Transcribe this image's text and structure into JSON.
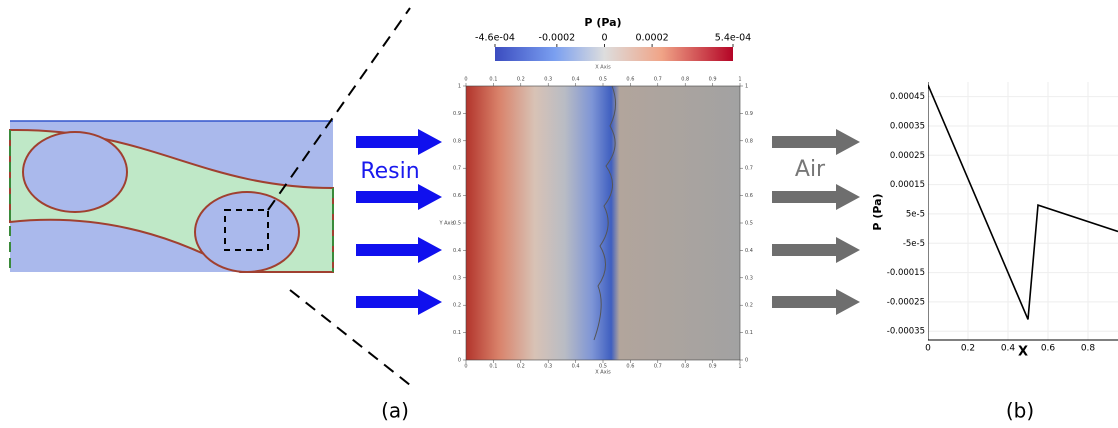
{
  "figure": {
    "label_a": "(a)",
    "label_b": "(b)",
    "resin_label": "Resin",
    "air_label": "Air"
  },
  "colorbar": {
    "title": "P (Pa)",
    "lim": [
      -0.00046,
      0.00054
    ],
    "ticks": [
      {
        "value": -0.00046,
        "label": "-4.6e-04"
      },
      -0.0002,
      0,
      0.0002,
      {
        "value": 0.00054,
        "label": "5.4e-04"
      }
    ],
    "axis_title": "X Axis"
  },
  "field_plot": {
    "x_axis_title": "X Axis",
    "y_axis_title": "Y Axis",
    "lim": [
      0,
      1
    ],
    "ticks": [
      0,
      0.1,
      0.2,
      0.3,
      0.4,
      0.5,
      0.6,
      0.7,
      0.8,
      0.9,
      1
    ]
  },
  "chart_data": {
    "type": "line",
    "x_label": "X",
    "y_label": "P (Pa)",
    "x": [
      0,
      0.5,
      0.55,
      0.95
    ],
    "values": [
      0.00049,
      -0.00031,
      8e-05,
      -1e-05
    ],
    "color": "#000000",
    "xlim": [
      0,
      0.95
    ],
    "ylim": [
      -0.00038,
      0.0005
    ],
    "xticks": [
      0,
      0.2,
      0.4,
      0.6,
      0.8
    ],
    "yticks": [
      -0.00035,
      -0.00025,
      -0.00015,
      {
        "value": -5e-05,
        "label": "-5e-5"
      },
      {
        "value": 5e-05,
        "label": "5e-5"
      },
      0.00015,
      0.00025,
      0.00035,
      0.00045
    ],
    "grid": true
  }
}
